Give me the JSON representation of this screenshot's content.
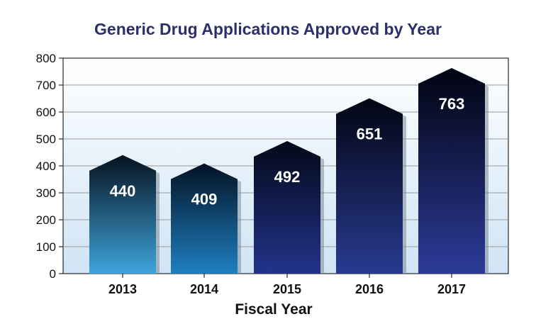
{
  "chart_data": {
    "type": "bar",
    "title": "Generic Drug Applications Approved by Year",
    "xlabel": "Fiscal Year",
    "ylabel": "",
    "categories": [
      "2013",
      "2014",
      "2015",
      "2016",
      "2017"
    ],
    "values": [
      440,
      409,
      492,
      651,
      763
    ],
    "data_labels": [
      "440",
      "409",
      "492",
      "651",
      "763"
    ],
    "ylim": [
      0,
      800
    ],
    "yticks": [
      0,
      100,
      200,
      300,
      400,
      500,
      600,
      700,
      800
    ],
    "ytick_labels": [
      "0",
      "100",
      "200",
      "300",
      "400",
      "500",
      "600",
      "700",
      "800"
    ],
    "grid": true,
    "legend": "none",
    "bar_shape": "house-arrow",
    "colors": {
      "title": "#2d2f6b",
      "plot_top": "#ffffff",
      "plot_bottom": "#cfe4f5",
      "gridline": "#9a9a9a"
    }
  }
}
